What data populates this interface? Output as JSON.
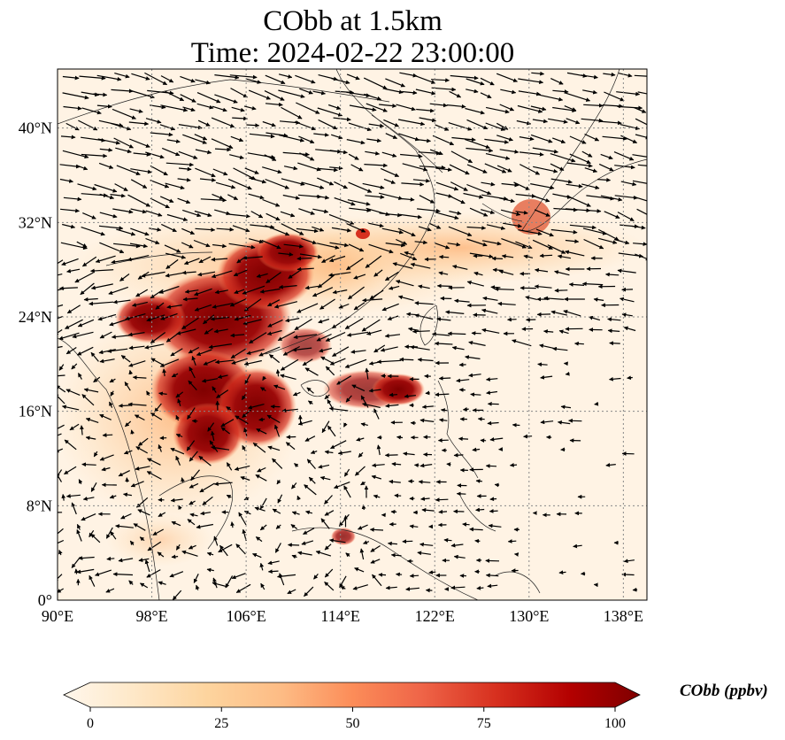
{
  "title": {
    "line1": "CObb at 1.5km",
    "line2": "Time: 2024-02-22 23:00:00"
  },
  "map": {
    "lon_range": [
      90,
      140
    ],
    "lat_range": [
      0,
      45
    ],
    "x_ticks": [
      "90°E",
      "98°E",
      "106°E",
      "114°E",
      "122°E",
      "130°E",
      "138°E"
    ],
    "y_ticks": [
      "0°",
      "8°N",
      "16°N",
      "24°N",
      "32°N",
      "40°N"
    ],
    "x_tick_values": [
      90,
      98,
      106,
      114,
      122,
      130,
      138
    ],
    "y_tick_values": [
      0,
      8,
      16,
      24,
      32,
      40
    ],
    "gridlines": "dotted",
    "field": "CObb",
    "wind_vectors": "quiver"
  },
  "colorbar": {
    "label": "CObb (ppbv)",
    "ticks": [
      "0",
      "25",
      "50",
      "75",
      "100"
    ],
    "tick_values": [
      0,
      25,
      50,
      75,
      100
    ],
    "range": [
      0,
      100
    ],
    "colormap": "OrRd",
    "colors": [
      "#fff7ec",
      "#fee8c8",
      "#fdd49e",
      "#fdbb84",
      "#fc8d59",
      "#ef6548",
      "#d7301f",
      "#b30000",
      "#7f0000"
    ],
    "extend": "both",
    "orientation": "horizontal"
  }
}
